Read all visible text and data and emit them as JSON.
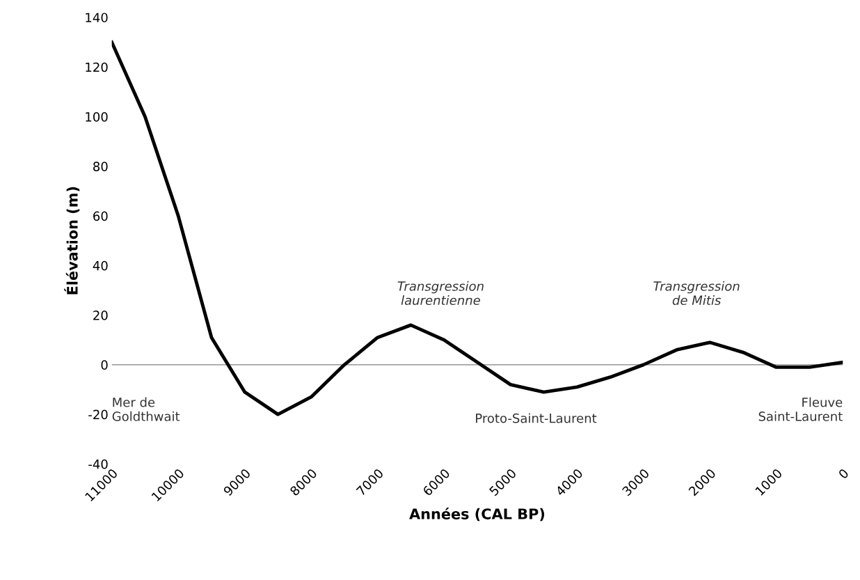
{
  "chart_data": {
    "type": "line",
    "xlabel": "Années (CAL BP)",
    "ylabel": "Élévation (m)",
    "x": [
      11000,
      10500,
      10000,
      9500,
      9000,
      8500,
      8000,
      7500,
      7000,
      6500,
      6000,
      5500,
      5000,
      4500,
      4000,
      3500,
      3000,
      2500,
      2000,
      1500,
      1000,
      500,
      0
    ],
    "series": [
      {
        "color": "#000000",
        "values": [
          130,
          100,
          60,
          11,
          -11,
          -20,
          -13,
          0,
          11,
          16,
          10,
          1,
          -8,
          -11,
          -9,
          -5,
          0,
          6,
          9,
          5,
          -1,
          -1,
          1
        ]
      }
    ],
    "xlim": [
      11000,
      0
    ],
    "xticks": [
      11000,
      10000,
      9000,
      8000,
      7000,
      6000,
      5000,
      4000,
      3000,
      2000,
      1000,
      0
    ],
    "ylim": [
      -40,
      140
    ],
    "yticks": [
      -40,
      -20,
      0,
      20,
      40,
      60,
      80,
      100,
      120,
      140
    ],
    "ref_lines": [
      {
        "axis": "y",
        "value": 0,
        "color": "#808080"
      }
    ],
    "annotations": [
      "Mer de\nGoldthwait",
      "Proto-Saint-Laurent",
      "Fleuve\nSaint-Laurent",
      "Transgression\nlaurentienne",
      "Transgression\nde Mitis"
    ],
    "grid": false,
    "legend": false,
    "marker": "none",
    "line_style": "solid"
  }
}
